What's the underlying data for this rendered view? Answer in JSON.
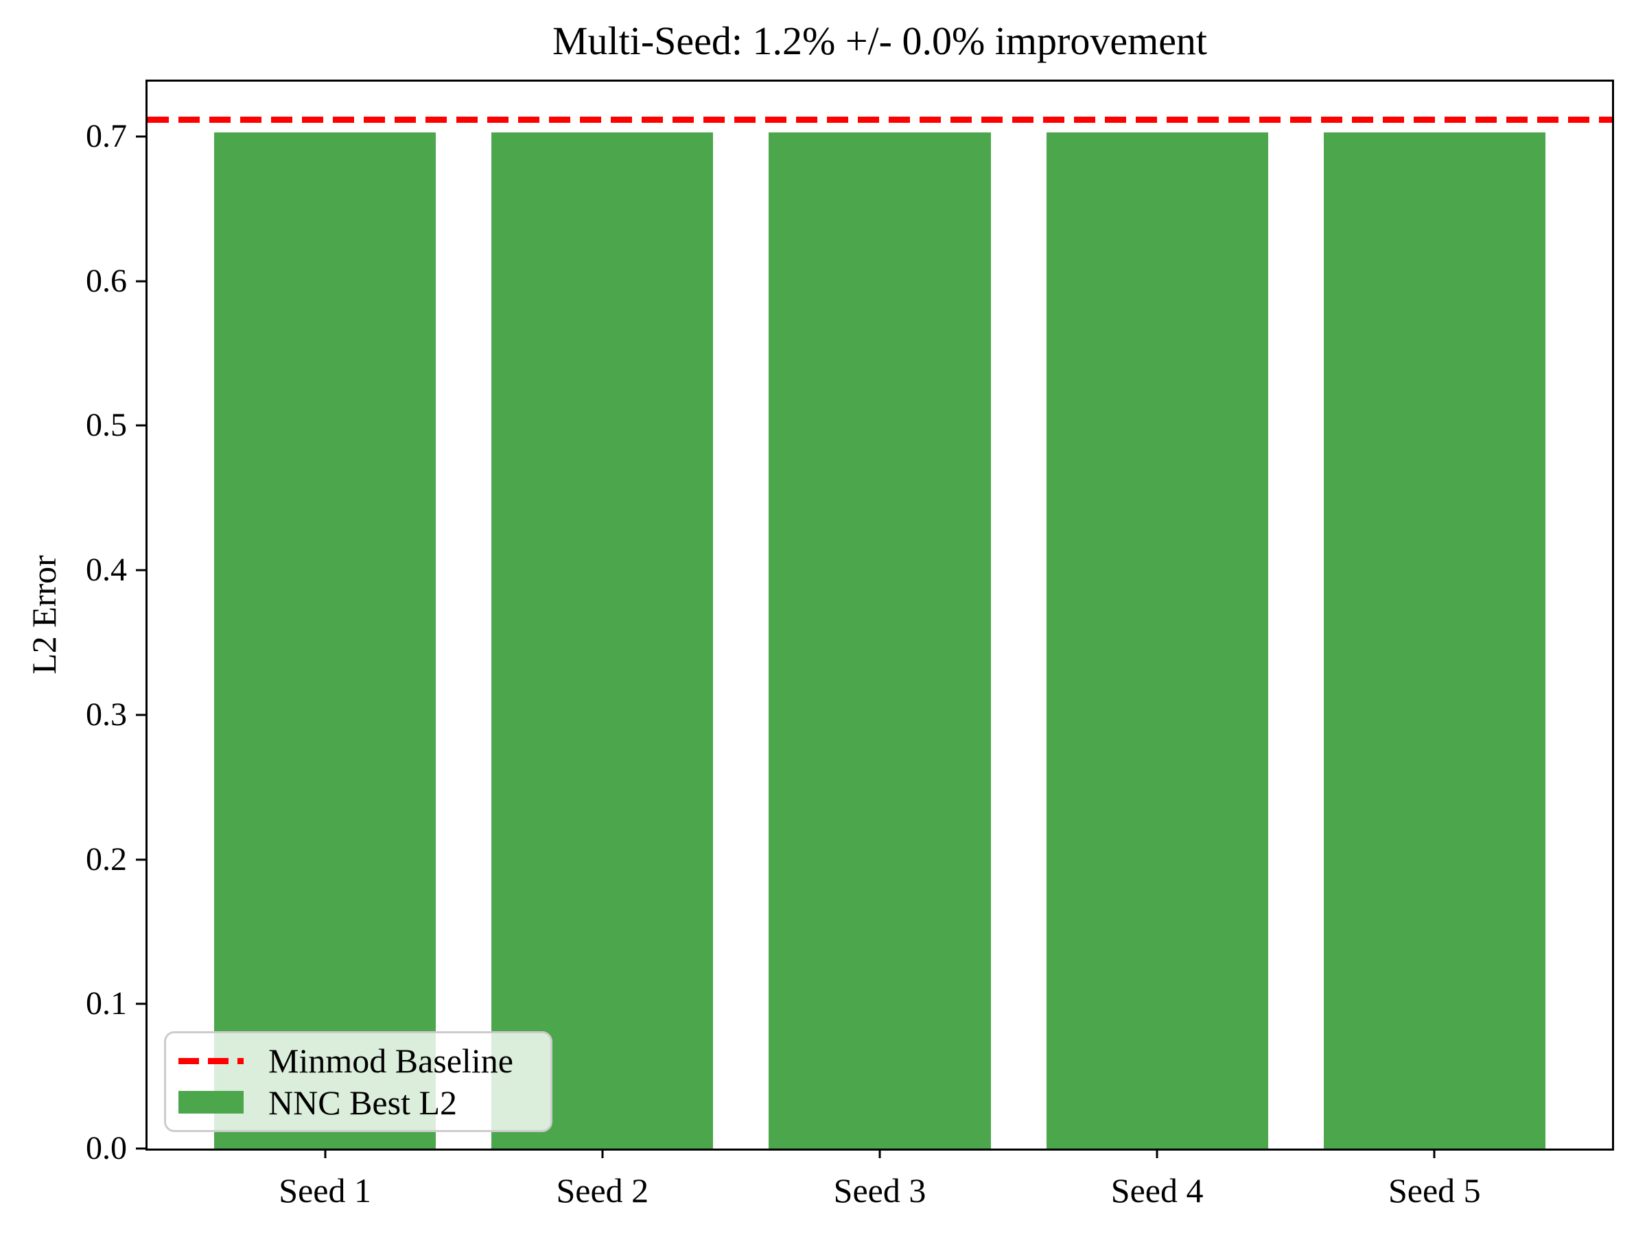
{
  "title": "Multi-Seed: 1.2% +/- 0.0% improvement",
  "chart_data": {
    "type": "bar",
    "title": "Multi-Seed: 1.2% +/- 0.0% improvement",
    "categories": [
      "Seed 1",
      "Seed 2",
      "Seed 3",
      "Seed 4",
      "Seed 5"
    ],
    "values": [
      0.703,
      0.703,
      0.703,
      0.703,
      0.703
    ],
    "baseline_value": 0.7115,
    "xlabel": "",
    "ylabel": "L2 Error",
    "ylim": [
      0,
      0.738
    ],
    "yticks": [
      "0.0",
      "0.1",
      "0.2",
      "0.3",
      "0.4",
      "0.5",
      "0.6",
      "0.7"
    ],
    "grid": false,
    "bar_color": "#4CA64C",
    "baseline_color": "#FF0000",
    "legend_position": "lower left",
    "legend": [
      {
        "label": "Minmod Baseline",
        "type": "dashed-line",
        "color": "#FF0000"
      },
      {
        "label": "NNC Best L2",
        "type": "patch",
        "color": "#4CA64C"
      }
    ],
    "x_axis_units": {
      "x_min": -0.64,
      "x_max": 4.64,
      "bar_width": 0.8
    }
  }
}
